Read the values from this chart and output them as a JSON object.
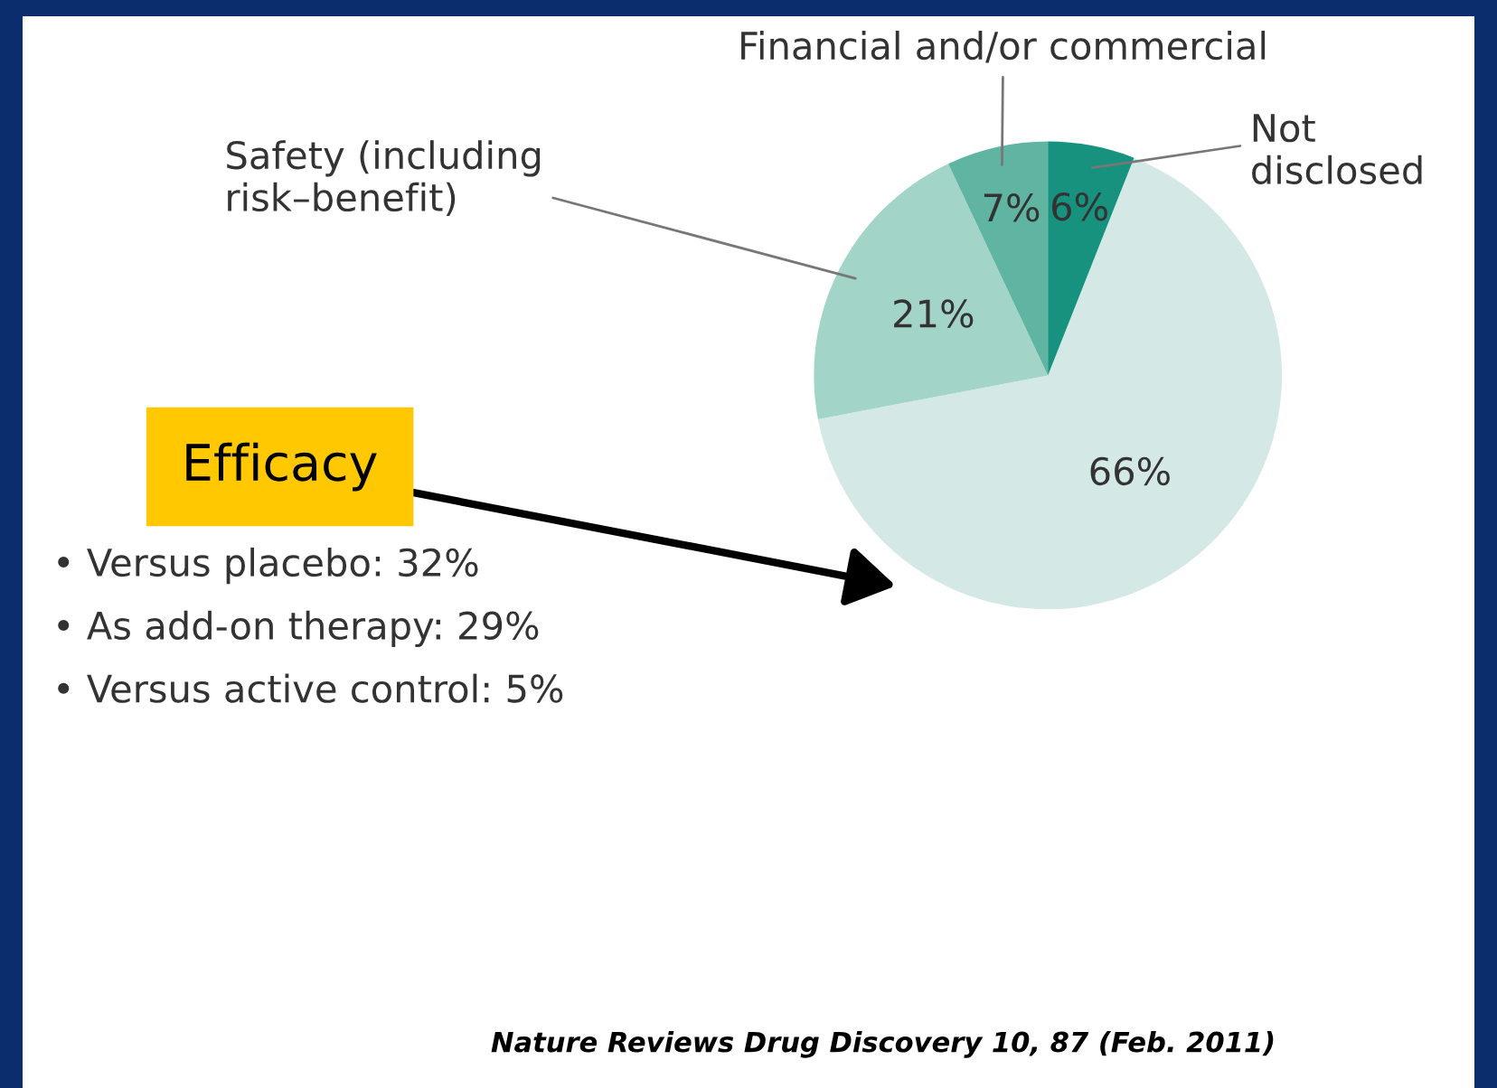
{
  "chart_data": {
    "type": "pie",
    "categories": [
      "Efficacy",
      "Safety (including\nrisk–benefit)",
      "Financial and/or commercial",
      "Not\ndisclosed"
    ],
    "values": [
      66,
      21,
      7,
      6
    ],
    "value_labels": [
      "66%",
      "21%",
      "7%",
      "6%"
    ],
    "colors": [
      "#d4e9e5",
      "#a3d4c8",
      "#5fb5a2",
      "#17927e"
    ],
    "annotations": [
      "• Versus placebo: 32%",
      "• As add-on therapy: 29%",
      "• Versus active control: 5%",
      "Nature Reviews Drug Discovery 10, 87 (Feb. 2011)"
    ]
  }
}
